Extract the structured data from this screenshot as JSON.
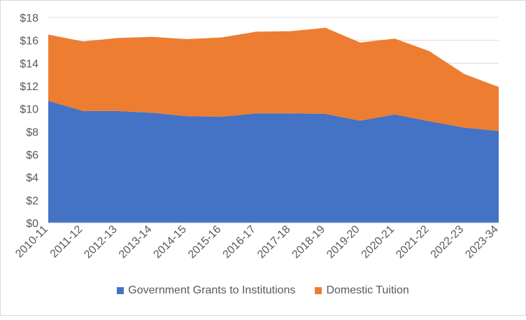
{
  "chart_data": {
    "type": "area",
    "stacked": true,
    "title": "",
    "xlabel": "",
    "ylabel": "",
    "categories": [
      "2010-11",
      "2011-12",
      "2012-13",
      "2013-14",
      "2014-15",
      "2015-16",
      "2016-17",
      "2017-18",
      "2018-19",
      "2019-20",
      "2020-21",
      "2021-22",
      "2022-23",
      "2023-34"
    ],
    "series": [
      {
        "name": "Government Grants to Institutions",
        "color": "#4472c4",
        "values": [
          10.7,
          9.8,
          9.8,
          9.65,
          9.35,
          9.3,
          9.6,
          9.6,
          9.55,
          8.95,
          9.5,
          8.9,
          8.35,
          8.05
        ]
      },
      {
        "name": "Domestic Tuition",
        "color": "#ed7d31",
        "values": [
          5.8,
          6.1,
          6.4,
          6.65,
          6.75,
          6.95,
          7.15,
          7.2,
          7.55,
          6.85,
          6.65,
          6.15,
          4.7,
          3.85
        ]
      }
    ],
    "ylim": [
      0,
      18
    ],
    "yticks": [
      "$0",
      "$2",
      "$4",
      "$6",
      "$8",
      "$10",
      "$12",
      "$14",
      "$16",
      "$18"
    ],
    "grid": true,
    "legend_position": "bottom"
  }
}
